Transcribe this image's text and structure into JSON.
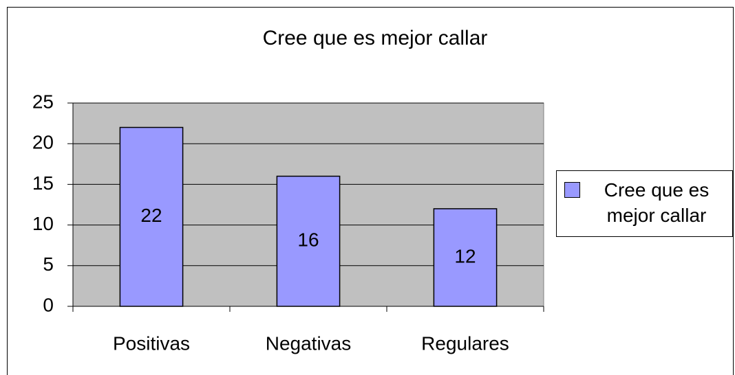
{
  "chart_data": {
    "type": "bar",
    "title": "Cree que es mejor callar",
    "categories": [
      "Positivas",
      "Negativas",
      "Regulares"
    ],
    "series": [
      {
        "name": "Cree que es mejor callar",
        "color": "#9999ff",
        "values": [
          22,
          16,
          12
        ]
      }
    ],
    "ylim": [
      0,
      25
    ],
    "yticks": [
      0,
      5,
      10,
      15,
      20,
      25
    ],
    "grid": true,
    "plot_background": "#c0c0c0",
    "legend": "right",
    "data_labels": true
  }
}
